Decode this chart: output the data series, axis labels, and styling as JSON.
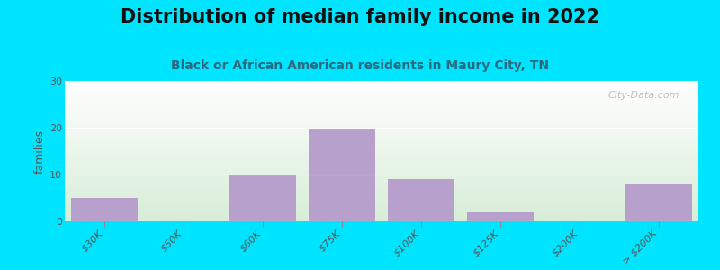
{
  "title": "Distribution of median family income in 2022",
  "subtitle": "Black or African American residents in Maury City, TN",
  "ylabel": "families",
  "categories": [
    "$30K",
    "$50K",
    "$60K",
    "$75K",
    "$100K",
    "$125K",
    "$200K",
    "> $200K"
  ],
  "values": [
    5,
    0,
    10,
    20,
    9,
    2,
    0,
    8
  ],
  "bar_color": "#b8a0cc",
  "background_color": "#00e5ff",
  "ylim": [
    0,
    30
  ],
  "yticks": [
    0,
    10,
    20,
    30
  ],
  "watermark": "City-Data.com",
  "title_fontsize": 15,
  "subtitle_fontsize": 10,
  "title_color": "#111111",
  "subtitle_color": "#2a6a80",
  "grad_top": "#ffffff",
  "grad_bottom": "#d8edd8",
  "tick_label_color": "#555555"
}
